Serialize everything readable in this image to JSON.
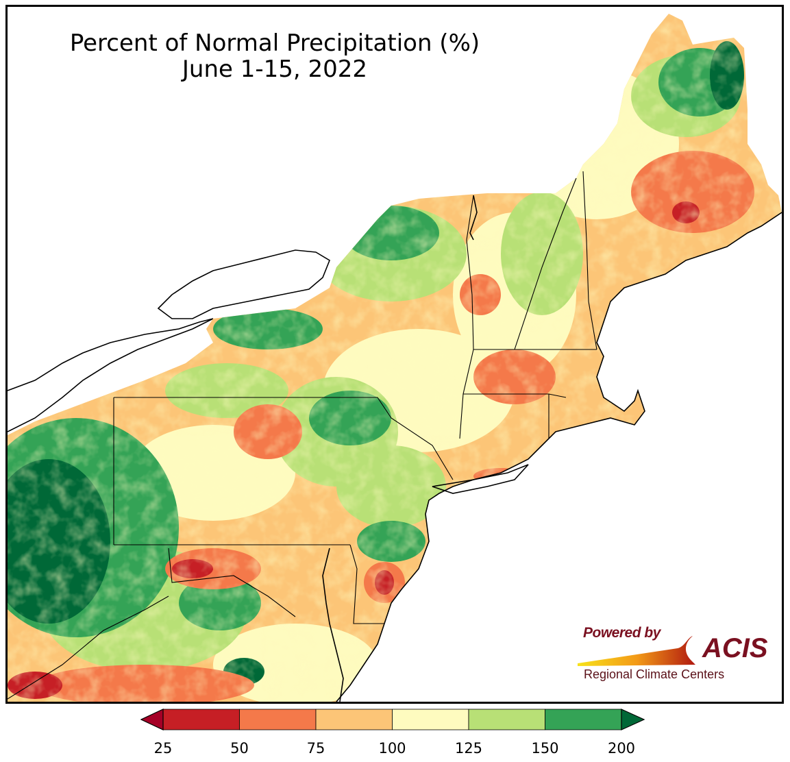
{
  "title": {
    "line1": "Percent of Normal Precipitation (%)",
    "line2": "June 1-15, 2022"
  },
  "logo": {
    "powered_by": "Powered by",
    "brand": "ACIS",
    "subtitle": "Regional Climate Centers",
    "colors": {
      "text": "#7a1020",
      "swoosh_start": "#f7e21b",
      "swoosh_end": "#b01810"
    }
  },
  "legend": {
    "tick_labels": [
      "25",
      "50",
      "75",
      "100",
      "125",
      "150",
      "200"
    ],
    "bins": [
      {
        "range": "25-50",
        "color": "#c61f25"
      },
      {
        "range": "50-75",
        "color": "#f4794a"
      },
      {
        "range": "75-100",
        "color": "#fcc577"
      },
      {
        "range": "100-125",
        "color": "#fefbbf"
      },
      {
        "range": "125-150",
        "color": "#b8e076"
      },
      {
        "range": "150-200",
        "color": "#34a356"
      }
    ],
    "under_color": "#a50026",
    "over_color": "#006837"
  },
  "map": {
    "region": "Northeast United States",
    "states_shown": [
      "ME",
      "NH",
      "VT",
      "MA",
      "RI",
      "CT",
      "NY",
      "NJ",
      "PA",
      "DE",
      "MD",
      "WV",
      "VA"
    ],
    "water_bodies": [
      "Lake Erie",
      "Lake Ontario",
      "Lake Champlain",
      "Chesapeake Bay",
      "Long Island Sound"
    ]
  }
}
